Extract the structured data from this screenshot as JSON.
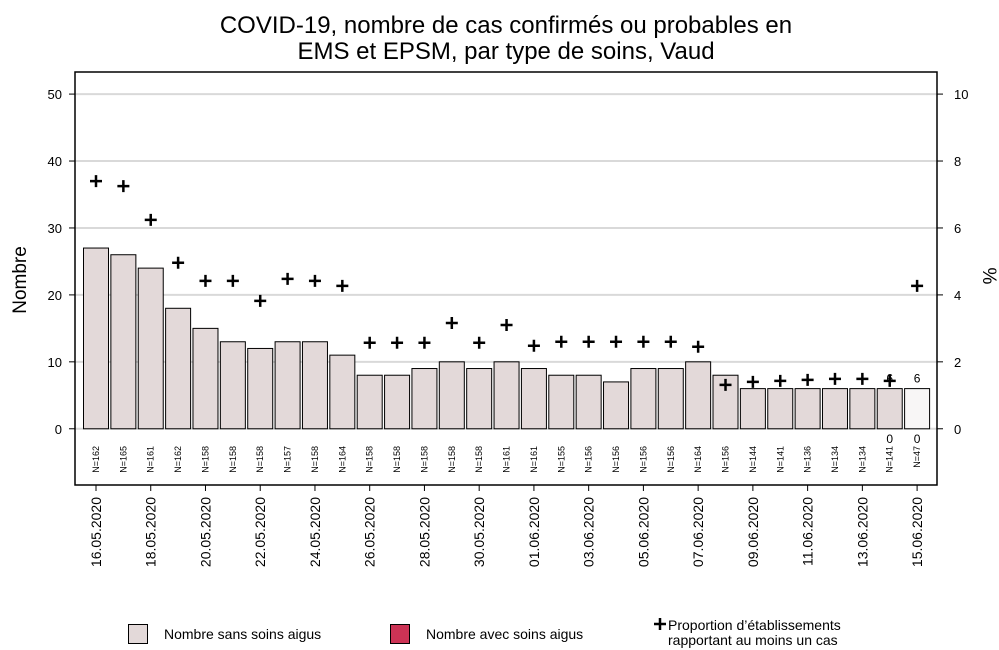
{
  "chart_data": {
    "type": "bar",
    "title": [
      "COVID-19, nombre de cas confirmés ou probables en",
      "EMS et EPSM, par type de soins, Vaud"
    ],
    "ylabel": "Nombre",
    "y2label": "%",
    "categories": [
      "16.05.2020",
      null,
      "18.05.2020",
      null,
      "20.05.2020",
      null,
      "22.05.2020",
      null,
      "24.05.2020",
      null,
      "26.05.2020",
      null,
      "28.05.2020",
      null,
      "30.05.2020",
      null,
      "01.06.2020",
      null,
      "03.06.2020",
      null,
      "05.06.2020",
      null,
      "07.06.2020",
      null,
      "09.06.2020",
      null,
      "11.06.2020",
      null,
      "13.06.2020",
      null,
      "15.06.2020"
    ],
    "n_labels": [
      "N=162",
      "N=165",
      "N=161",
      "N=162",
      "N=158",
      "N=158",
      "N=158",
      "N=157",
      "N=158",
      "N=164",
      "N=158",
      "N=158",
      "N=158",
      "N=158",
      "N=158",
      "N=161",
      "N=161",
      "N=155",
      "N=156",
      "N=156",
      "N=156",
      "N=156",
      "N=164",
      "N=156",
      "N=144",
      "N=141",
      "N=136",
      "N=134",
      "N=134",
      "N=141",
      "N=47"
    ],
    "series": [
      {
        "name": "Nombre sans soins aigus",
        "color": "#e3d9d9",
        "last_color": "#f8f6f6",
        "values": [
          27,
          26,
          24,
          18,
          15,
          13,
          12,
          13,
          13,
          11,
          8,
          8,
          9,
          10,
          9,
          10,
          9,
          8,
          8,
          7,
          9,
          9,
          10,
          8,
          6,
          6,
          6,
          6,
          6,
          6,
          6
        ],
        "value_labels": [
          null,
          null,
          null,
          null,
          null,
          null,
          null,
          null,
          null,
          null,
          null,
          null,
          null,
          null,
          null,
          null,
          null,
          null,
          null,
          null,
          null,
          null,
          null,
          null,
          null,
          null,
          null,
          null,
          null,
          "6",
          "6"
        ]
      },
      {
        "name": "Nombre avec soins aigus",
        "color": "#cc3355",
        "values": [
          0,
          0,
          0,
          0,
          0,
          0,
          0,
          0,
          0,
          0,
          0,
          0,
          0,
          0,
          0,
          0,
          0,
          0,
          0,
          0,
          0,
          0,
          0,
          0,
          0,
          0,
          0,
          0,
          0,
          0,
          0
        ],
        "value_labels": [
          null,
          null,
          null,
          null,
          null,
          null,
          null,
          null,
          null,
          null,
          null,
          null,
          null,
          null,
          null,
          null,
          null,
          null,
          null,
          null,
          null,
          null,
          null,
          null,
          null,
          null,
          null,
          null,
          null,
          "0",
          "0"
        ]
      },
      {
        "name": "Proportion d’établissements rapportant au moins un cas",
        "type": "scatter",
        "axis": "y2",
        "color": "#000000",
        "values": [
          7.4,
          7.25,
          6.24,
          4.96,
          4.42,
          4.42,
          3.82,
          4.48,
          4.42,
          4.27,
          2.57,
          2.57,
          2.57,
          3.16,
          2.57,
          3.1,
          2.48,
          2.6,
          2.6,
          2.6,
          2.6,
          2.6,
          2.45,
          1.31,
          1.4,
          1.43,
          1.46,
          1.49,
          1.49,
          1.43,
          4.27
        ]
      }
    ],
    "ylim": [
      -8.4,
      53.3
    ],
    "yticks": [
      0,
      10,
      20,
      30,
      40,
      50
    ],
    "y2lim": [
      -1.68,
      10.66
    ],
    "y2ticks": [
      0,
      2,
      4,
      6,
      8,
      10
    ],
    "grid": true
  }
}
